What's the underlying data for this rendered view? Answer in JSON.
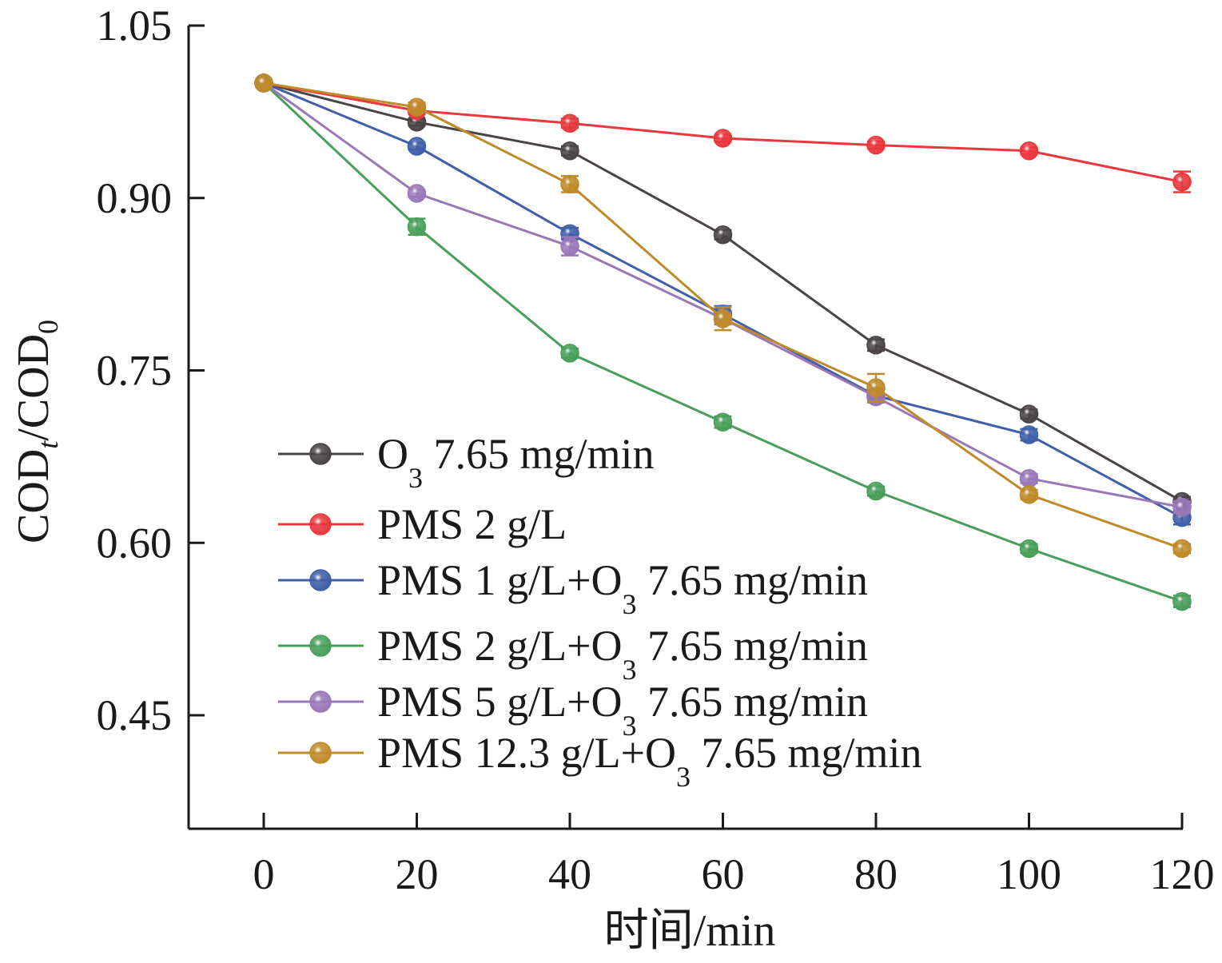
{
  "chart_data": {
    "type": "line",
    "title": "",
    "xlabel": "时间/min",
    "ylabel": {
      "main": "COD",
      "sub_t": "t",
      "mid": "/COD",
      "sub_0": "0"
    },
    "x": [
      0,
      20,
      40,
      60,
      80,
      100,
      120
    ],
    "xlim": [
      -10,
      120
    ],
    "ylim": [
      0.35,
      1.05
    ],
    "x_ticks": [
      0,
      20,
      40,
      60,
      80,
      100,
      120
    ],
    "x_tick_labels": [
      "0",
      "20",
      "40",
      "60",
      "80",
      "100",
      "120"
    ],
    "y_ticks": [
      1.05,
      0.9,
      0.75,
      0.6,
      0.45
    ],
    "y_tick_labels": [
      "1.05",
      "0.90",
      "0.75",
      "0.60",
      "0.45"
    ],
    "grid": false,
    "legend_position": "bottom-left",
    "series": [
      {
        "legend": {
          "a": "O",
          "sub": "3",
          "b": "  7.65 mg/min"
        },
        "color": "#4a4446",
        "values": [
          1.0,
          0.966,
          0.941,
          0.868,
          0.772,
          0.712,
          0.636
        ],
        "errors": [
          0.002,
          0.003,
          0.004,
          0.004,
          0.005,
          0.004,
          0.004
        ]
      },
      {
        "legend": {
          "a": "PMS  2 g/L",
          "sub": "",
          "b": ""
        },
        "color": "#e8383d",
        "values": [
          1.0,
          0.976,
          0.965,
          0.952,
          0.946,
          0.941,
          0.914
        ],
        "errors": [
          0.002,
          0.003,
          0.004,
          0.003,
          0.003,
          0.003,
          0.009
        ]
      },
      {
        "legend": {
          "a": "PMS 1 g/L+O",
          "sub": "3",
          "b": "  7.65 mg/min"
        },
        "color": "#3f5fa8",
        "values": [
          1.0,
          0.945,
          0.869,
          0.799,
          0.728,
          0.694,
          0.622
        ],
        "errors": [
          0.002,
          0.003,
          0.005,
          0.007,
          0.005,
          0.005,
          0.006
        ]
      },
      {
        "legend": {
          "a": "PMS 2 g/L+O",
          "sub": "3",
          "b": "  7.65 mg/min"
        },
        "color": "#4a9e5c",
        "values": [
          1.0,
          0.875,
          0.765,
          0.705,
          0.645,
          0.595,
          0.549
        ],
        "errors": [
          0.002,
          0.007,
          0.004,
          0.005,
          0.004,
          0.004,
          0.005
        ]
      },
      {
        "legend": {
          "a": "PMS 5 g/L+O",
          "sub": "3",
          "b": "  7.65 mg/min"
        },
        "color": "#9a78b8",
        "values": [
          1.0,
          0.904,
          0.858,
          0.795,
          0.727,
          0.656,
          0.631
        ],
        "errors": [
          0.002,
          0.003,
          0.008,
          0.005,
          0.005,
          0.004,
          0.005
        ]
      },
      {
        "legend": {
          "a": "PMS 12.3 g/L+O",
          "sub": "3",
          "b": "  7.65 mg/min"
        },
        "color": "#bf8a2a",
        "values": [
          1.0,
          0.979,
          0.912,
          0.795,
          0.735,
          0.642,
          0.595
        ],
        "errors": [
          0.002,
          0.004,
          0.007,
          0.01,
          0.012,
          0.004,
          0.004
        ]
      }
    ]
  }
}
